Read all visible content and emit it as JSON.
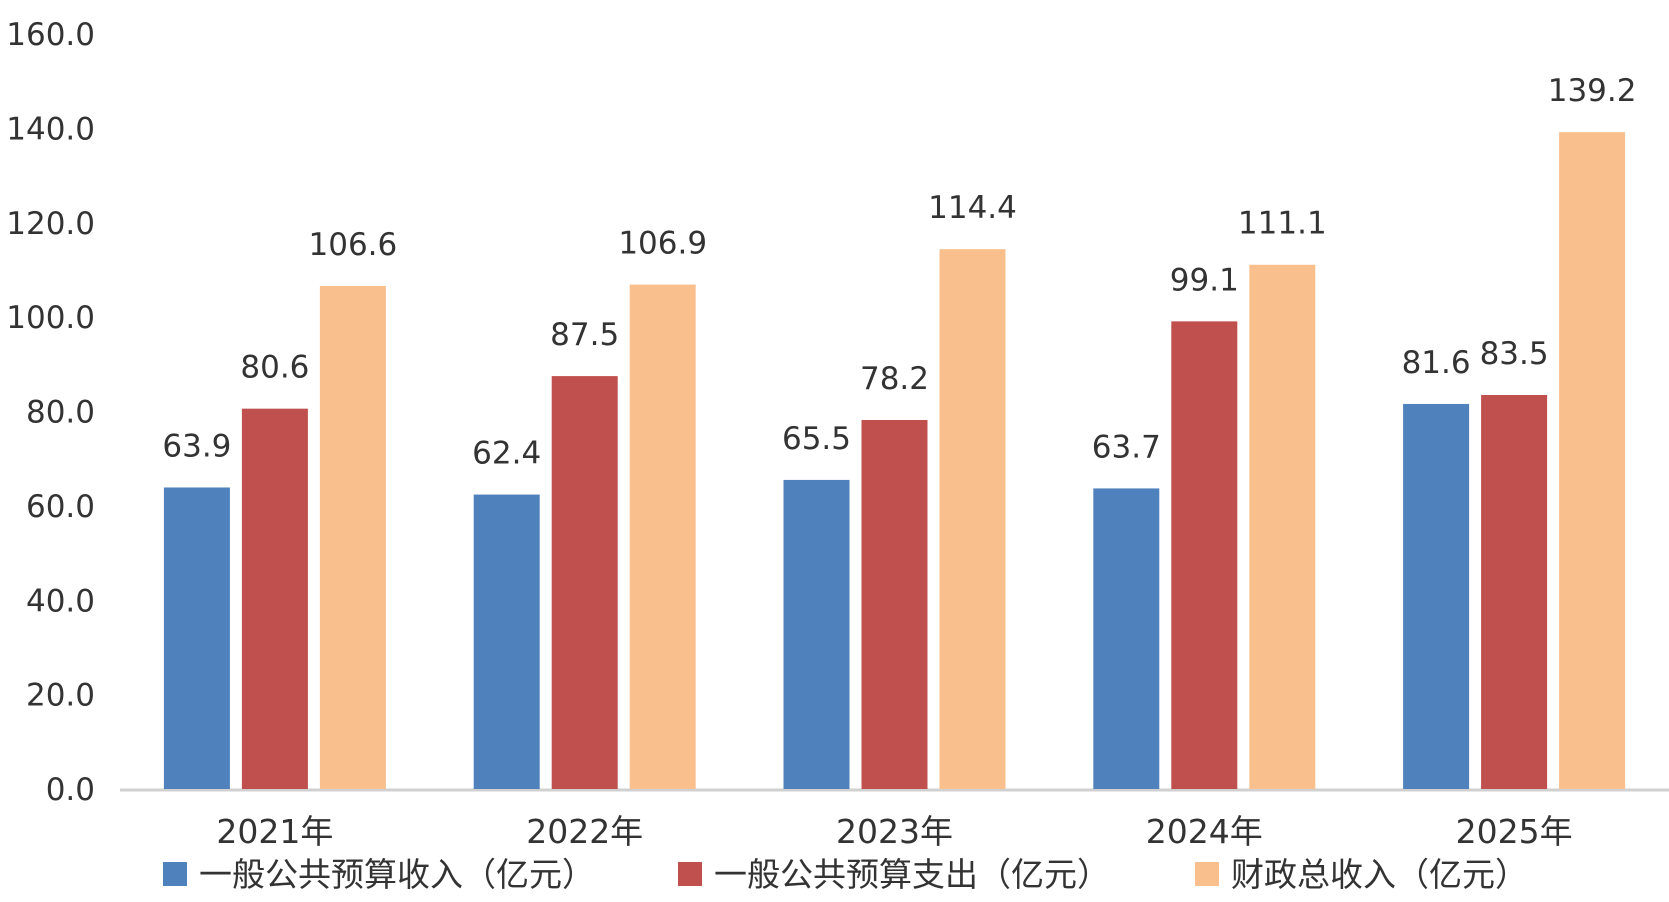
{
  "chart_data": {
    "type": "bar",
    "title": "",
    "xlabel": "",
    "ylabel": "",
    "ylim": [
      0,
      160
    ],
    "y_ticks": [
      "0.0",
      "20.0",
      "40.0",
      "60.0",
      "80.0",
      "100.0",
      "120.0",
      "140.0",
      "160.0"
    ],
    "grid": false,
    "legend_position": "bottom",
    "categories": [
      "2021年",
      "2022年",
      "2023年",
      "2024年",
      "2025年"
    ],
    "series": [
      {
        "name": "一般公共预算收入（亿元）",
        "color": "#4F81BD",
        "values": [
          63.9,
          62.4,
          65.5,
          63.7,
          81.6
        ],
        "labels": [
          "63.9",
          "62.4",
          "65.5",
          "63.7",
          "81.6"
        ]
      },
      {
        "name": "一般公共预算支出（亿元）",
        "color": "#C0504D",
        "values": [
          80.6,
          87.5,
          78.2,
          99.1,
          83.5
        ],
        "labels": [
          "80.6",
          "87.5",
          "78.2",
          "99.1",
          "83.5"
        ]
      },
      {
        "name": "财政总收入（亿元）",
        "color": "#F9C08E",
        "values": [
          106.6,
          106.9,
          114.4,
          111.1,
          139.2
        ],
        "labels": [
          "106.6",
          "106.9",
          "114.4",
          "111.1",
          "139.2"
        ]
      }
    ]
  }
}
